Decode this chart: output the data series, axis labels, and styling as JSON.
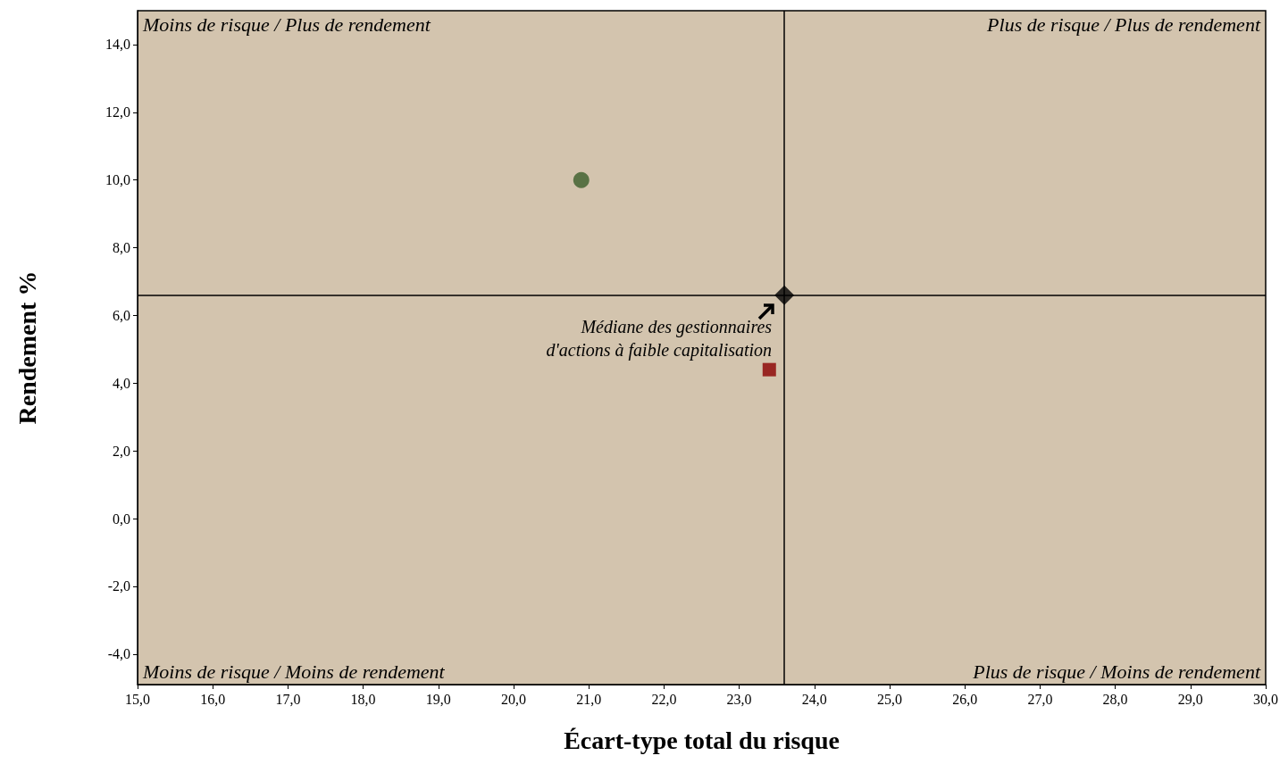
{
  "chart_data": {
    "type": "scatter",
    "xlabel": "Écart-type total du risque",
    "ylabel": "Rendement %",
    "xlim": [
      15,
      30
    ],
    "ylim": [
      -4.9,
      15
    ],
    "xticks": [
      {
        "value": 15,
        "label": "15,0"
      },
      {
        "value": 16,
        "label": "16,0"
      },
      {
        "value": 17,
        "label": "17,0"
      },
      {
        "value": 18,
        "label": "18,0"
      },
      {
        "value": 19,
        "label": "19,0"
      },
      {
        "value": 20,
        "label": "20,0"
      },
      {
        "value": 21,
        "label": "21,0"
      },
      {
        "value": 22,
        "label": "22,0"
      },
      {
        "value": 23,
        "label": "23,0"
      },
      {
        "value": 24,
        "label": "24,0"
      },
      {
        "value": 25,
        "label": "25,0"
      },
      {
        "value": 26,
        "label": "26,0"
      },
      {
        "value": 27,
        "label": "27,0"
      },
      {
        "value": 28,
        "label": "28,0"
      },
      {
        "value": 29,
        "label": "29,0"
      },
      {
        "value": 30,
        "label": "30,0"
      }
    ],
    "yticks": [
      {
        "value": -4,
        "label": "-4,0"
      },
      {
        "value": -2,
        "label": "-2,0"
      },
      {
        "value": 0,
        "label": "0,0"
      },
      {
        "value": 2,
        "label": "2,0"
      },
      {
        "value": 4,
        "label": "4,0"
      },
      {
        "value": 6,
        "label": "6,0"
      },
      {
        "value": 8,
        "label": "8,0"
      },
      {
        "value": 10,
        "label": "10,0"
      },
      {
        "value": 12,
        "label": "12,0"
      },
      {
        "value": 14,
        "label": "14,0"
      }
    ],
    "grid": false,
    "series": [
      {
        "color": "#3b5e2b",
        "marker": "circle",
        "x": [
          20.9
        ],
        "values": [
          10.0
        ]
      },
      {
        "color": "#8b0000",
        "marker": "square",
        "x": [
          23.4
        ],
        "values": [
          4.4
        ]
      },
      {
        "color": "#000000",
        "marker": "diamond",
        "x": [
          23.6
        ],
        "values": [
          6.6
        ]
      }
    ],
    "ref_lines": [
      {
        "axis": "x",
        "value": 23.6,
        "color": "#000000"
      },
      {
        "axis": "y",
        "value": 6.6,
        "color": "#000000"
      }
    ],
    "annotations": [
      "Moins de risque / Plus de rendement",
      "Plus de risque / Plus de rendement",
      "Moins de risque / Moins de rendement",
      "Plus de risque / Moins de rendement",
      {
        "text": "Médiane des gestionnaires\nd'actions à faible capitalisation",
        "x": 23.6,
        "y": 6.6
      }
    ]
  }
}
